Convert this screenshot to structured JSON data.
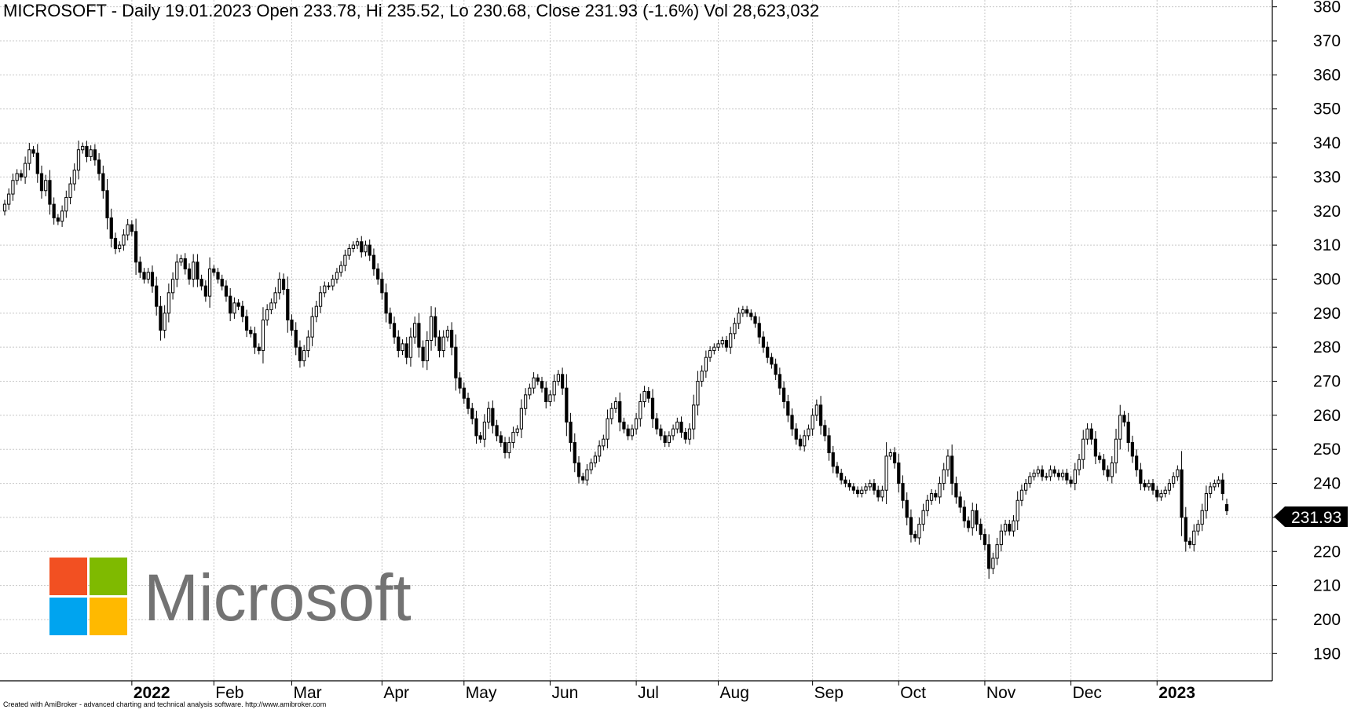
{
  "header": {
    "title": "MICROSOFT - Daily 19.01.2023 Open 233.78, Hi 235.52, Lo 230.68, Close 231.93 (-1.6%) Vol 28,623,032"
  },
  "footer": {
    "credit": "Created with AmiBroker - advanced charting and technical analysis software. http://www.amibroker.com"
  },
  "logo": {
    "word": "Microsoft",
    "colors": [
      "#f25022",
      "#7fba00",
      "#00a4ef",
      "#ffb900"
    ]
  },
  "last_price_label": "231.93",
  "chart_data": {
    "type": "candlestick",
    "title": "MICROSOFT - Daily 19.01.2023 Open 233.78, Hi 235.52, Lo 230.68, Close 231.93 (-1.6%) Vol 28,623,032",
    "ylim": [
      182,
      382
    ],
    "y_ticks": [
      190,
      200,
      210,
      220,
      230,
      240,
      250,
      260,
      270,
      280,
      290,
      300,
      310,
      320,
      330,
      340,
      350,
      360,
      370,
      380
    ],
    "y_tick_labels": [
      "190",
      "200",
      "210",
      "220",
      "230",
      "240",
      "250",
      "260",
      "270",
      "280",
      "290",
      "300",
      "310",
      "320",
      "330",
      "340",
      "350",
      "360",
      "370",
      "380"
    ],
    "grid": true,
    "x_ticks": [
      {
        "label": "2022",
        "index": 31,
        "bold": true
      },
      {
        "label": "Feb",
        "index": 51,
        "bold": false
      },
      {
        "label": "Mar",
        "index": 70,
        "bold": false
      },
      {
        "label": "Apr",
        "index": 92,
        "bold": false
      },
      {
        "label": "May",
        "index": 112,
        "bold": false
      },
      {
        "label": "Jun",
        "index": 133,
        "bold": false
      },
      {
        "label": "Jul",
        "index": 154,
        "bold": false
      },
      {
        "label": "Aug",
        "index": 174,
        "bold": false
      },
      {
        "label": "Sep",
        "index": 197,
        "bold": false
      },
      {
        "label": "Oct",
        "index": 218,
        "bold": false
      },
      {
        "label": "Nov",
        "index": 239,
        "bold": false
      },
      {
        "label": "Dec",
        "index": 260,
        "bold": false
      },
      {
        "label": "2023",
        "index": 281,
        "bold": true
      }
    ],
    "last": {
      "open": 233.78,
      "high": 235.52,
      "low": 230.68,
      "close": 231.93
    },
    "closes": [
      322,
      325,
      329,
      331,
      330,
      334,
      338,
      337,
      331,
      326,
      329,
      322,
      318,
      317,
      320,
      324,
      328,
      332,
      338,
      339,
      336,
      338,
      335,
      331,
      326,
      318,
      312,
      309,
      310,
      313,
      316,
      314,
      305,
      302,
      300,
      302,
      298,
      292,
      285,
      290,
      296,
      300,
      305,
      306,
      303,
      300,
      305,
      300,
      298,
      295,
      303,
      302,
      300,
      298,
      295,
      290,
      293,
      292,
      289,
      285,
      284,
      280,
      279,
      288,
      291,
      293,
      296,
      300,
      297,
      288,
      285,
      280,
      276,
      279,
      283,
      289,
      292,
      296,
      298,
      298,
      300,
      302,
      304,
      307,
      309,
      310,
      311,
      308,
      310,
      307,
      303,
      300,
      296,
      290,
      287,
      283,
      279,
      281,
      277,
      283,
      287,
      280,
      276,
      282,
      289,
      283,
      279,
      283,
      285,
      280,
      271,
      268,
      265,
      262,
      259,
      254,
      253,
      258,
      262,
      257,
      254,
      252,
      249,
      252,
      255,
      256,
      262,
      266,
      268,
      271,
      270,
      268,
      264,
      266,
      270,
      272,
      268,
      258,
      252,
      246,
      242,
      241,
      244,
      246,
      248,
      251,
      253,
      259,
      262,
      264,
      258,
      256,
      254,
      256,
      259,
      264,
      267,
      265,
      259,
      256,
      254,
      252,
      254,
      256,
      258,
      255,
      253,
      256,
      263,
      270,
      273,
      277,
      279,
      280,
      281,
      282,
      280,
      284,
      287,
      290,
      291,
      290,
      289,
      287,
      283,
      280,
      277,
      275,
      272,
      268,
      264,
      260,
      256,
      253,
      251,
      254,
      256,
      260,
      263,
      257,
      254,
      249,
      245,
      243,
      241,
      240,
      239,
      238,
      237,
      238,
      239,
      240,
      238,
      236,
      238,
      248,
      249,
      246,
      240,
      235,
      230,
      225,
      224,
      228,
      232,
      235,
      237,
      236,
      240,
      244,
      248,
      240,
      236,
      233,
      229,
      227,
      232,
      228,
      225,
      222,
      215,
      218,
      222,
      226,
      228,
      226,
      229,
      235,
      238,
      240,
      242,
      243,
      244,
      242,
      242,
      244,
      243,
      242,
      243,
      241,
      240,
      244,
      247,
      253,
      256,
      253,
      248,
      247,
      244,
      242,
      246,
      253,
      260,
      258,
      252,
      248,
      244,
      240,
      239,
      240,
      238,
      236,
      237,
      238,
      240,
      242,
      244,
      230,
      223,
      222,
      226,
      228,
      232,
      237,
      239,
      240,
      241,
      237,
      231.93
    ]
  }
}
